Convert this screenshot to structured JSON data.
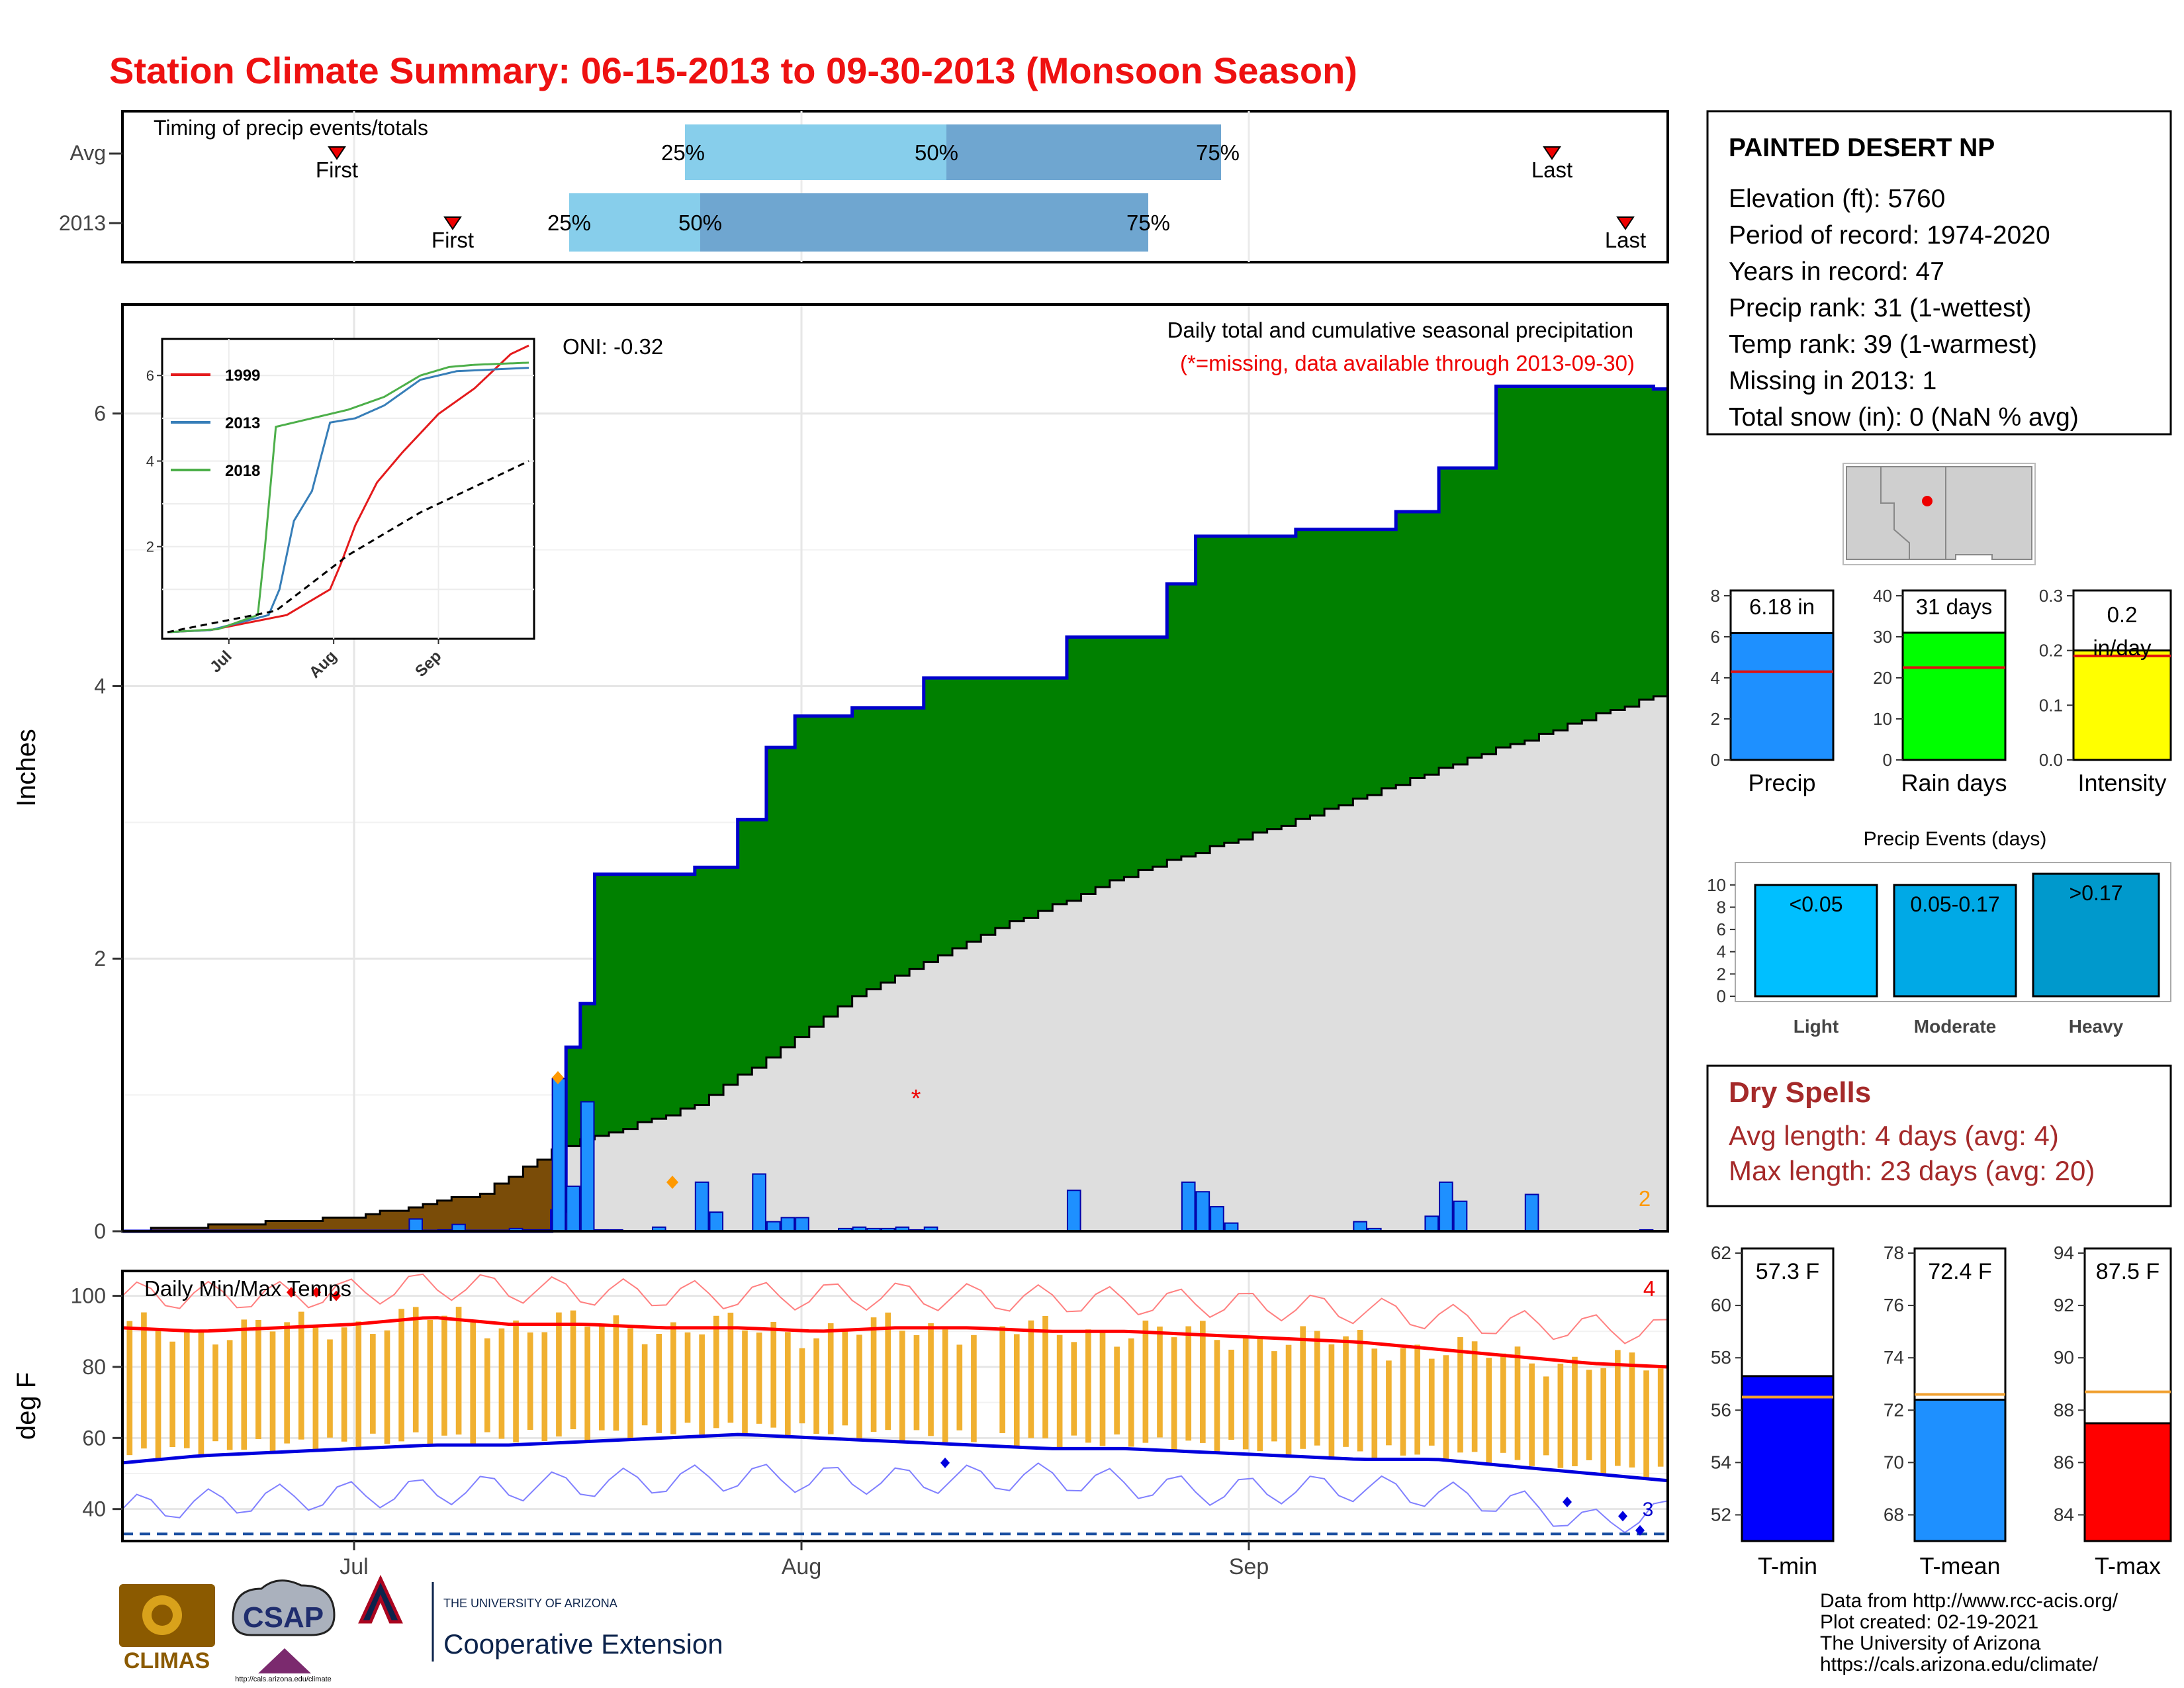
{
  "title": "Station Climate Summary: 06-15-2013 to 09-30-2013 (Monsoon Season)",
  "colors": {
    "title": "#ee1111",
    "cumulative_2013": "#008000",
    "cumulative_avg": "#dedede",
    "deficit": "#7a4c08",
    "daily_bar": "#1e90ff",
    "tmax": "#ff0000",
    "tmin": "#0000dd",
    "range_bar": "#f0b030",
    "q_light": "#87ceeb",
    "q_dark": "#6fa6d0"
  },
  "timing": {
    "label": "Timing of precip events/totals",
    "rows": [
      {
        "name": "Avg",
        "first": "First",
        "last": "Last",
        "p25": "25%",
        "p50": "50%",
        "p75": "75%"
      },
      {
        "name": "2013",
        "first": "First",
        "last": "Last",
        "p25": "25%",
        "p50": "50%",
        "p75": "75%"
      }
    ]
  },
  "main": {
    "ylabel": "Inches",
    "yticks": [
      "0",
      "2",
      "4",
      "6"
    ],
    "oni": "ONI: -0.32",
    "note1": "Daily total and cumulative seasonal precipitation",
    "note2": "(*=missing, data available through 2013-09-30)",
    "corner_count": "2",
    "missing_marker": "*"
  },
  "inset": {
    "yticks": [
      "2",
      "4",
      "6"
    ],
    "xticks": [
      "Jul",
      "Aug",
      "Sep"
    ],
    "legend": [
      "1999",
      "2013",
      "2018"
    ]
  },
  "temps": {
    "label": "Daily Min/Max Temps",
    "ylabel": "deg F",
    "yticks": [
      "40",
      "60",
      "80",
      "100"
    ],
    "count": "4",
    "count2": "3"
  },
  "xaxis": [
    "Jul",
    "Aug",
    "Sep"
  ],
  "station": {
    "name": "PAINTED DESERT NP",
    "lines": [
      "Elevation (ft): 5760",
      "Period of record: 1974-2020",
      "Years in record: 47",
      "Precip rank: 31 (1-wettest)",
      "Temp rank: 39 (1-warmest)",
      "Missing in 2013: 1",
      "Total snow (in): 0 (NaN % avg)"
    ]
  },
  "mini_bars": [
    {
      "label": "Precip",
      "value_text": "6.18 in",
      "value": 6.18,
      "avg": 4.3,
      "ylim": [
        0,
        8
      ],
      "ticks": [
        "0",
        "2",
        "4",
        "6",
        "8"
      ],
      "color": "#1e90ff"
    },
    {
      "label": "Rain days",
      "value_text": "31 days",
      "value": 31,
      "avg": 22.5,
      "ylim": [
        0,
        40
      ],
      "ticks": [
        "0",
        "10",
        "20",
        "30",
        "40"
      ],
      "color": "#00ff00"
    },
    {
      "label": "Intensity",
      "value_text": "0.2 in/day",
      "value_line1": "0.2",
      "value_line2": "in/day",
      "value": 0.2,
      "avg": 0.19,
      "ylim": [
        0,
        0.3
      ],
      "ticks": [
        "0.0",
        "0.1",
        "0.2",
        "0.3"
      ],
      "color": "#ffff00"
    }
  ],
  "events": {
    "title": "Precip Events (days)",
    "bars": [
      {
        "label": "Light",
        "text": "<0.05",
        "value": 10,
        "color": "#00bfff"
      },
      {
        "label": "Moderate",
        "text": "0.05-0.17",
        "value": 10,
        "color": "#00a9e6"
      },
      {
        "label": "Heavy",
        "text": ">0.17",
        "value": 11,
        "color": "#0099cc"
      }
    ],
    "ticks": [
      "0",
      "2",
      "4",
      "6",
      "8",
      "10"
    ]
  },
  "dry": {
    "title": "Dry Spells",
    "line1": "Avg length: 4 days (avg: 4)",
    "line2": "Max length: 23 days (avg: 20)"
  },
  "temp_bars": [
    {
      "label": "T-min",
      "text": "57.3 F",
      "value": 57.3,
      "avg": 56.5,
      "ylim": [
        51,
        62
      ],
      "ticks": [
        "52",
        "54",
        "56",
        "58",
        "60",
        "62"
      ],
      "color": "#0000ff"
    },
    {
      "label": "T-mean",
      "text": "72.4 F",
      "value": 72.4,
      "avg": 72.6,
      "ylim": [
        67,
        78
      ],
      "ticks": [
        "68",
        "70",
        "72",
        "74",
        "76",
        "78"
      ],
      "color": "#1e90ff"
    },
    {
      "label": "T-max",
      "text": "87.5 F",
      "value": 87.5,
      "avg": 88.7,
      "ylim": [
        83,
        94
      ],
      "ticks": [
        "84",
        "86",
        "88",
        "90",
        "92",
        "94"
      ],
      "color": "#ff0000"
    }
  ],
  "footer": {
    "lines": [
      "Data from http://www.rcc-acis.org/",
      "Plot created: 02-19-2021",
      "The University of Arizona",
      "https://cals.arizona.edu/climate/"
    ],
    "logo1": "CLIMAS",
    "logo2": "CSAP",
    "logo3_top": "THE UNIVERSITY OF ARIZONA",
    "logo3_bottom": "Cooperative Extension",
    "logo2_url": "http://cals.arizona.edu/climate"
  },
  "chart_data": [
    {
      "type": "area",
      "title": "Daily total and cumulative seasonal precipitation",
      "ylabel": "Inches",
      "ylim": [
        0,
        6.8
      ],
      "x_start": "2013-06-15",
      "x_end": "2013-09-30",
      "series": [
        {
          "name": "2013 cumulative",
          "x": [
            "2013-06-15",
            "2013-07-05",
            "2013-07-15",
            "2013-07-16",
            "2013-07-17",
            "2013-07-18",
            "2013-07-25",
            "2013-07-28",
            "2013-07-30",
            "2013-08-01",
            "2013-08-05",
            "2013-08-10",
            "2013-08-20",
            "2013-08-27",
            "2013-08-29",
            "2013-09-05",
            "2013-09-12",
            "2013-09-15",
            "2013-09-19",
            "2013-09-30"
          ],
          "values": [
            0.0,
            0.0,
            0.15,
            1.35,
            1.67,
            2.62,
            2.67,
            3.02,
            3.55,
            3.78,
            3.84,
            4.06,
            4.36,
            4.75,
            5.1,
            5.15,
            5.28,
            5.6,
            6.2,
            6.18
          ]
        },
        {
          "name": "Average cumulative",
          "x": [
            "2013-06-15",
            "2013-07-01",
            "2013-07-10",
            "2013-07-15",
            "2013-07-25",
            "2013-08-05",
            "2013-08-15",
            "2013-08-25",
            "2013-09-05",
            "2013-09-15",
            "2013-09-30"
          ],
          "values": [
            0.0,
            0.1,
            0.28,
            0.6,
            0.92,
            1.72,
            2.22,
            2.65,
            3.02,
            3.4,
            3.93
          ]
        }
      ],
      "daily": {
        "x": [
          "2013-07-05",
          "2013-07-07",
          "2013-07-08",
          "2013-07-12",
          "2013-07-13",
          "2013-07-14",
          "2013-07-15",
          "2013-07-16",
          "2013-07-17",
          "2013-07-18",
          "2013-07-19",
          "2013-07-22",
          "2013-07-25",
          "2013-07-26",
          "2013-07-29",
          "2013-07-30",
          "2013-07-31",
          "2013-08-01",
          "2013-08-04",
          "2013-08-05",
          "2013-08-06",
          "2013-08-07",
          "2013-08-08",
          "2013-08-09",
          "2013-08-10",
          "2013-08-20",
          "2013-08-28",
          "2013-08-29",
          "2013-08-30",
          "2013-08-31",
          "2013-09-09",
          "2013-09-10",
          "2013-09-14",
          "2013-09-15",
          "2013-09-16",
          "2013-09-21",
          "2013-09-29"
        ],
        "values": [
          0.09,
          0.01,
          0.05,
          0.02,
          0.01,
          0.01,
          1.12,
          0.33,
          0.95,
          0.01,
          0.01,
          0.03,
          0.36,
          0.14,
          0.42,
          0.07,
          0.1,
          0.1,
          0.02,
          0.03,
          0.02,
          0.02,
          0.03,
          0.01,
          0.03,
          0.3,
          0.36,
          0.29,
          0.18,
          0.06,
          0.07,
          0.02,
          0.11,
          0.36,
          0.22,
          0.27,
          0.01
        ]
      },
      "missing_x": "2013-08-09",
      "missing_y": 1.0
    },
    {
      "type": "line",
      "title": "inset",
      "xticks": [
        "Jul",
        "Aug",
        "Sep"
      ],
      "ylim": [
        0,
        6.7
      ],
      "series": [
        {
          "name": "1999",
          "x_frac": [
            0,
            0.12,
            0.33,
            0.45,
            0.48,
            0.52,
            0.58,
            0.65,
            0.75,
            0.85,
            0.95,
            1.0
          ],
          "values": [
            0.0,
            0.05,
            0.4,
            1.0,
            1.6,
            2.5,
            3.5,
            4.2,
            5.1,
            5.7,
            6.5,
            6.7
          ]
        },
        {
          "name": "2013",
          "x_frac": [
            0,
            0.12,
            0.28,
            0.31,
            0.35,
            0.4,
            0.45,
            0.52,
            0.6,
            0.7,
            0.8,
            1.0
          ],
          "values": [
            0.0,
            0.05,
            0.4,
            1.0,
            2.6,
            3.3,
            4.9,
            5.0,
            5.3,
            5.9,
            6.1,
            6.18
          ]
        },
        {
          "name": "2018",
          "x_frac": [
            0,
            0.14,
            0.25,
            0.27,
            0.3,
            0.4,
            0.5,
            0.6,
            0.7,
            0.78,
            0.85,
            1.0
          ],
          "values": [
            0.0,
            0.07,
            0.4,
            2.0,
            4.8,
            5.0,
            5.2,
            5.5,
            6.0,
            6.2,
            6.25,
            6.3
          ]
        },
        {
          "name": "average",
          "x_frac": [
            0,
            0.3,
            0.5,
            0.7,
            1.0
          ],
          "values": [
            0.0,
            0.5,
            1.8,
            2.8,
            4.0
          ]
        }
      ]
    },
    {
      "type": "line",
      "title": "Daily Min/Max Temps",
      "ylabel": "deg F",
      "ylim": [
        31,
        107
      ],
      "avg_max": {
        "x_frac": [
          0,
          0.05,
          0.1,
          0.15,
          0.2,
          0.25,
          0.3,
          0.35,
          0.4,
          0.45,
          0.5,
          0.55,
          0.6,
          0.65,
          0.7,
          0.75,
          0.8,
          0.85,
          0.9,
          0.95,
          1.0
        ],
        "values": [
          91,
          90,
          91,
          92,
          94,
          92,
          92,
          91,
          91,
          90,
          91,
          91,
          90,
          90,
          89,
          88,
          87,
          85,
          83,
          81,
          80
        ]
      },
      "avg_min": {
        "x_frac": [
          0,
          0.05,
          0.1,
          0.15,
          0.2,
          0.25,
          0.3,
          0.35,
          0.4,
          0.45,
          0.5,
          0.55,
          0.6,
          0.65,
          0.7,
          0.75,
          0.8,
          0.85,
          0.9,
          0.95,
          1.0
        ],
        "values": [
          53,
          55,
          56,
          57,
          58,
          58,
          59,
          60,
          61,
          60,
          59,
          58,
          57,
          57,
          56,
          55,
          54,
          54,
          52,
          50,
          48
        ]
      },
      "record_max": {
        "x_frac": [
          0,
          0.1,
          0.15,
          0.2,
          0.3,
          0.4,
          0.5,
          0.6,
          0.7,
          0.8,
          0.9,
          1.0
        ],
        "values": [
          100,
          100,
          101,
          103,
          101,
          100,
          100,
          99,
          98,
          96,
          92,
          90
        ]
      },
      "record_min": {
        "x_frac": [
          0,
          0.1,
          0.2,
          0.3,
          0.4,
          0.5,
          0.6,
          0.7,
          0.8,
          0.9,
          0.95,
          1.0
        ],
        "values": [
          40,
          43,
          45,
          47,
          49,
          48,
          49,
          45,
          46,
          42,
          36,
          39
        ]
      },
      "freeze_line": 33
    }
  ]
}
